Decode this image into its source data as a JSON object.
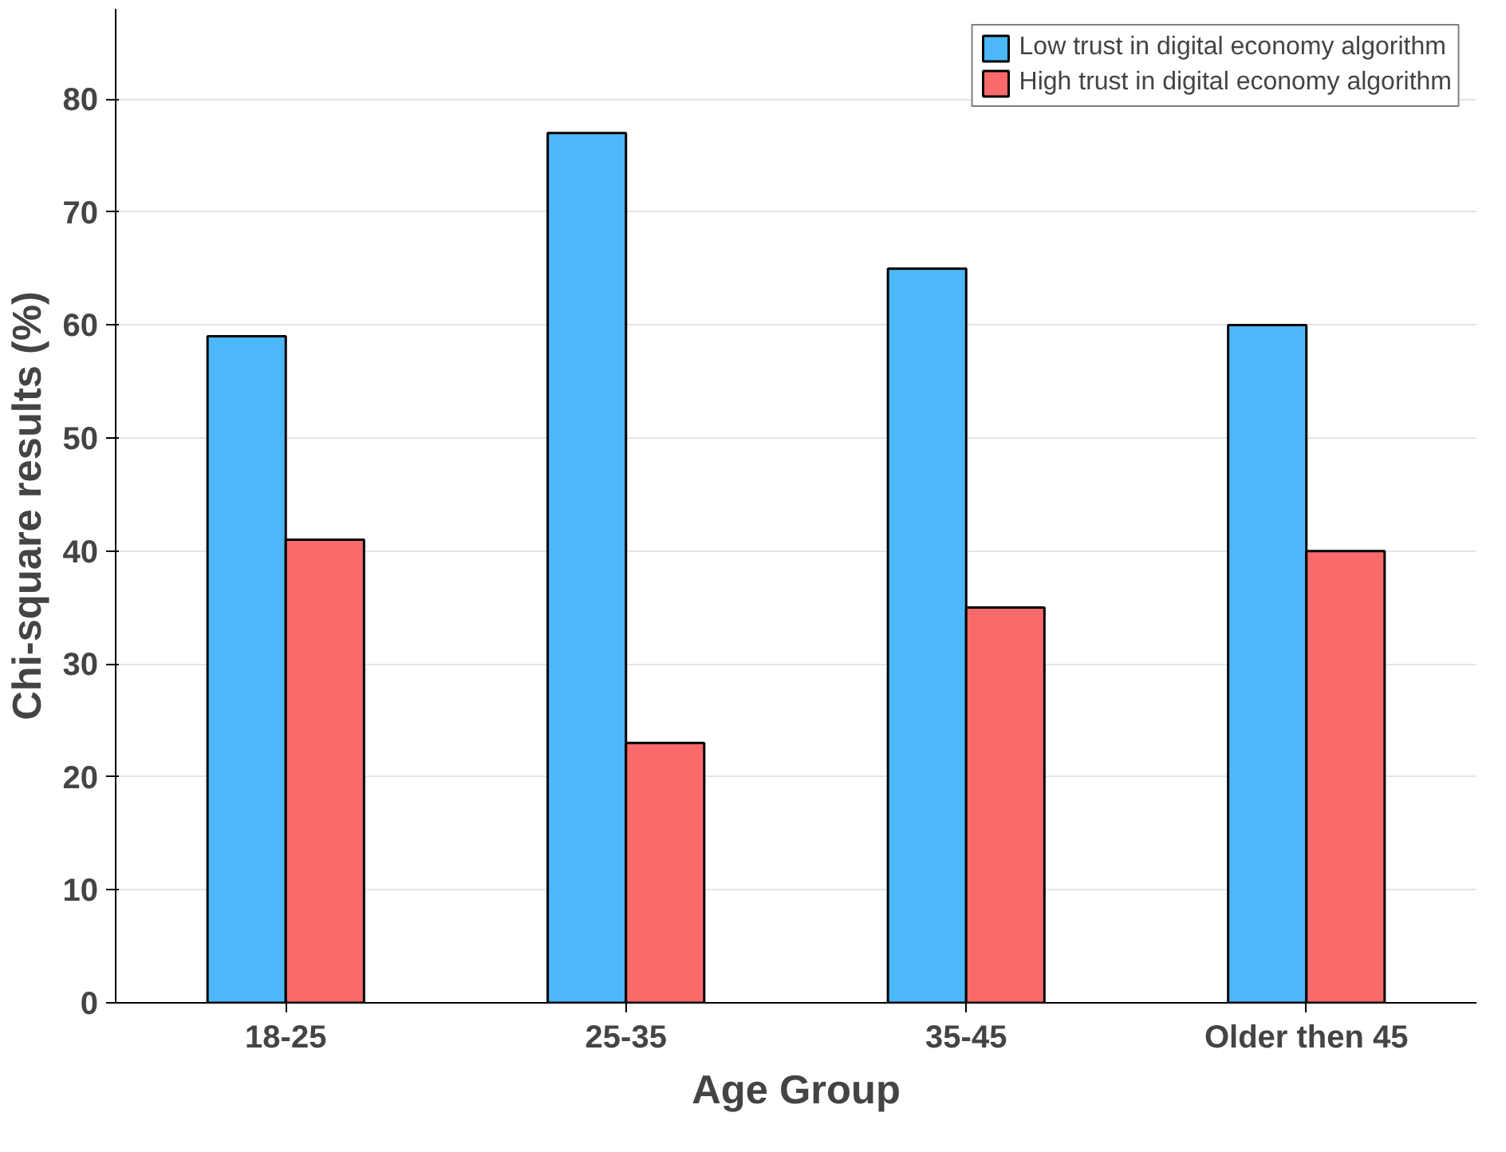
{
  "chart_data": {
    "type": "bar",
    "xlabel": "Age Group",
    "ylabel": "Chi-square results (%)",
    "categories": [
      "18-25",
      "25-35",
      "35-45",
      "Older then 45"
    ],
    "series": [
      {
        "name": "Low trust in digital economy algorithm",
        "color": "#4cb8fa",
        "values": [
          59,
          77,
          65,
          60
        ]
      },
      {
        "name": "High trust in digital economy algorithm",
        "color": "#f96a6a",
        "values": [
          41,
          23,
          35,
          40
        ]
      }
    ],
    "ylim": [
      0,
      88
    ],
    "yticks": [
      0,
      10,
      20,
      30,
      40,
      50,
      60,
      70,
      80
    ],
    "grid": "y",
    "legend": "top right"
  }
}
